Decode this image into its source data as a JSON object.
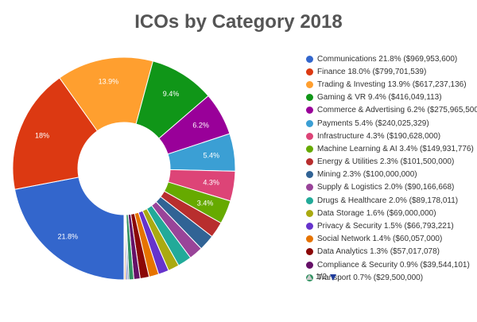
{
  "chart_data": {
    "type": "pie",
    "title": "ICOs by Category 2018",
    "legend_position": "right",
    "slices": [
      {
        "label": "Communications",
        "pct": 21.8,
        "amount": "$969,953,600",
        "legend": "Communications 21.8% ($969,953,600)",
        "slice_label": "21.8%",
        "color": "#3366cc"
      },
      {
        "label": "Finance",
        "pct": 18.0,
        "amount": "$799,701,539",
        "legend": "Finance 18.0% ($799,701,539)",
        "slice_label": "18%",
        "color": "#dc3912"
      },
      {
        "label": "Trading & Investing",
        "pct": 13.9,
        "amount": "$617,237,136",
        "legend": "Trading & Investing 13.9% ($617,237,136)",
        "slice_label": "13.9%",
        "color": "#ff9f2f"
      },
      {
        "label": "Gaming & VR",
        "pct": 9.4,
        "amount": "$416,049,113",
        "legend": "Gaming & VR 9.4% ($416,049,113)",
        "slice_label": "9.4%",
        "color": "#109618"
      },
      {
        "label": "Commerce & Advertising",
        "pct": 6.2,
        "amount": "$275,965,500",
        "legend": "Commerce & Advertising 6.2% ($275,965,500)",
        "slice_label": "6.2%",
        "color": "#990099"
      },
      {
        "label": "Payments",
        "pct": 5.4,
        "amount": "$240,025,329",
        "legend": "Payments 5.4% ($240,025,329)",
        "slice_label": "5.4%",
        "color": "#3b9fd4"
      },
      {
        "label": "Infrastructure",
        "pct": 4.3,
        "amount": "$190,628,000",
        "legend": "Infrastructure 4.3% ($190,628,000)",
        "slice_label": "4.3%",
        "color": "#dd4477"
      },
      {
        "label": "Machine Learning & AI",
        "pct": 3.4,
        "amount": "$149,931,776",
        "legend": "Machine Learning & AI 3.4% ($149,931,776)",
        "slice_label": "3.4%",
        "color": "#66aa00"
      },
      {
        "label": "Energy & Utilities",
        "pct": 2.3,
        "amount": "$101,500,000",
        "legend": "Energy & Utilities 2.3% ($101,500,000)",
        "slice_label": "",
        "color": "#b82e2e"
      },
      {
        "label": "Mining",
        "pct": 2.3,
        "amount": "$100,000,000",
        "legend": "Mining 2.3% ($100,000,000)",
        "slice_label": "",
        "color": "#316395"
      },
      {
        "label": "Supply & Logistics",
        "pct": 2.0,
        "amount": "$90,166,668",
        "legend": "Supply & Logistics 2.0% ($90,166,668)",
        "slice_label": "",
        "color": "#994499"
      },
      {
        "label": "Drugs & Healthcare",
        "pct": 2.0,
        "amount": "$89,178,011",
        "legend": "Drugs & Healthcare 2.0% ($89,178,011)",
        "slice_label": "",
        "color": "#22aa99"
      },
      {
        "label": "Data Storage",
        "pct": 1.6,
        "amount": "$69,000,000",
        "legend": "Data Storage 1.6% ($69,000,000)",
        "slice_label": "",
        "color": "#aaaa11"
      },
      {
        "label": "Privacy & Security",
        "pct": 1.5,
        "amount": "$66,793,221",
        "legend": "Privacy & Security 1.5% ($66,793,221)",
        "slice_label": "",
        "color": "#6633cc"
      },
      {
        "label": "Social Network",
        "pct": 1.4,
        "amount": "$60,057,000",
        "legend": "Social Network 1.4% ($60,057,000)",
        "slice_label": "",
        "color": "#e67300"
      },
      {
        "label": "Data Analytics",
        "pct": 1.3,
        "amount": "$57,017,078",
        "legend": "Data Analytics 1.3% ($57,017,078)",
        "slice_label": "",
        "color": "#8b0707"
      },
      {
        "label": "Compliance & Security",
        "pct": 0.9,
        "amount": "$39,544,101",
        "legend": "Compliance & Security 0.9% ($39,544,101)",
        "slice_label": "",
        "color": "#651067"
      },
      {
        "label": "Transport",
        "pct": 0.7,
        "amount": "$29,500,000",
        "legend": "Transport 0.7% ($29,500,000)",
        "slice_label": "",
        "color": "#329262"
      },
      {
        "label": "",
        "pct": 0.2,
        "amount": "",
        "legend": "",
        "slice_label": "",
        "color": "#5574a6"
      },
      {
        "label": "",
        "pct": 0.2,
        "amount": "",
        "legend": "",
        "slice_label": "",
        "color": "#3b3eac"
      },
      {
        "label": "",
        "pct": 0.2,
        "amount": "",
        "legend": "",
        "slice_label": "",
        "color": "#b77322"
      },
      {
        "label": "",
        "pct": 0.1,
        "amount": "",
        "legend": "",
        "slice_label": "",
        "color": "#16d620"
      }
    ],
    "legend_entries": 18
  },
  "pager": {
    "text": "1/2",
    "up_icon": "triangle-up-icon",
    "down_icon": "triangle-down-icon"
  }
}
